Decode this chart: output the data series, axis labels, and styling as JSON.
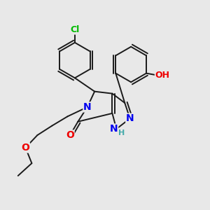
{
  "fig_bg": "#e8e8e8",
  "bond_color": "#1a1a1a",
  "bond_width": 1.4,
  "dbo": 0.012,
  "atom_colors": {
    "N": "#0000ee",
    "O": "#ee0000",
    "Cl": "#00bb00",
    "NH": "#44aaaa",
    "OH": "#ee0000"
  },
  "font_size": 9
}
